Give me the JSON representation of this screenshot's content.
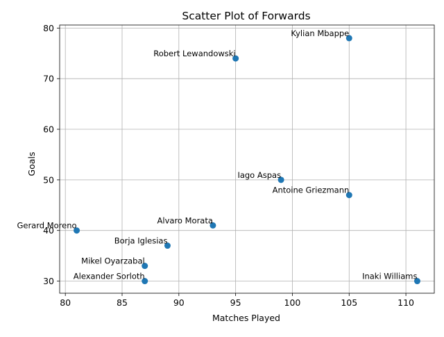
{
  "chart_data": {
    "type": "scatter",
    "title": "Scatter Plot of Forwards",
    "xlabel": "Matches Played",
    "ylabel": "Goals",
    "xlim": [
      79.5,
      112.5
    ],
    "ylim": [
      27.6,
      80.6
    ],
    "xticks": [
      80,
      85,
      90,
      95,
      100,
      105,
      110
    ],
    "yticks": [
      30,
      40,
      50,
      60,
      70,
      80
    ],
    "grid": true,
    "marker_color": "#1f77b4",
    "points": [
      {
        "label": "Kylian Mbappe",
        "x": 105,
        "y": 78
      },
      {
        "label": "Robert Lewandowski",
        "x": 95,
        "y": 74
      },
      {
        "label": "Iago Aspas",
        "x": 99,
        "y": 50
      },
      {
        "label": "Antoine Griezmann",
        "x": 105,
        "y": 47
      },
      {
        "label": "Alvaro Morata",
        "x": 93,
        "y": 41
      },
      {
        "label": "Gerard Moreno",
        "x": 81,
        "y": 40
      },
      {
        "label": "Borja Iglesias",
        "x": 89,
        "y": 37
      },
      {
        "label": "Mikel Oyarzabal",
        "x": 87,
        "y": 33
      },
      {
        "label": "Alexander Sorloth",
        "x": 87,
        "y": 30
      },
      {
        "label": "Inaki Williams",
        "x": 111,
        "y": 30
      }
    ]
  }
}
